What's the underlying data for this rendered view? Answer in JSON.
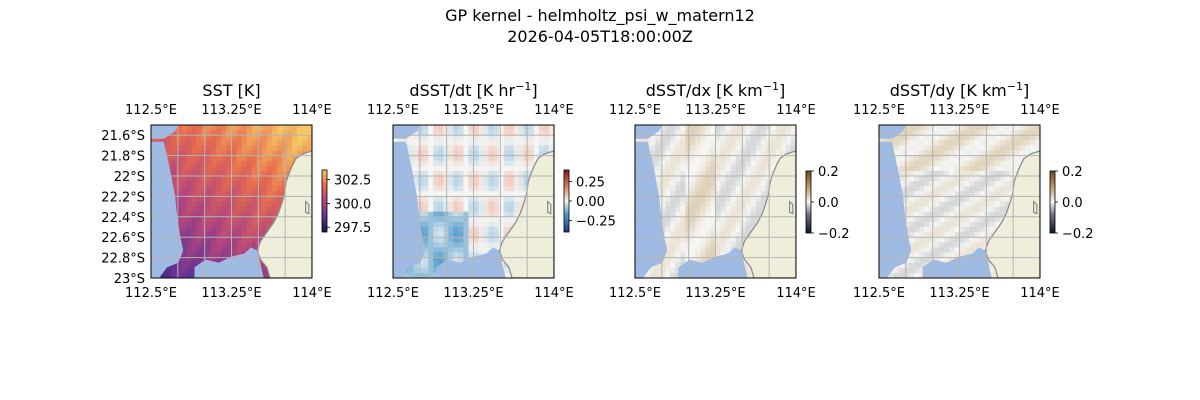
{
  "figure": {
    "title": "GP kernel - helmholtz_psi_w_matern12",
    "timestamp": "2026-04-05T18:00:00Z"
  },
  "colors": {
    "land": "#efeedb",
    "ocean_mask": "#9fbae3",
    "coast": "#8a8a8a",
    "grid": "#b4b4b4"
  },
  "chart_data": [
    {
      "type": "heatmap",
      "title": "SST [K]",
      "colormap": "thermal (purple-red-orange)",
      "x_tick_labels": [
        "112.5°E",
        "113.25°E",
        "114°E"
      ],
      "x_ticks": [
        112.5,
        113.25,
        114.0
      ],
      "y_tick_labels": [
        "21.6°S",
        "21.8°S",
        "22°S",
        "22.2°S",
        "22.4°S",
        "22.6°S",
        "22.8°S",
        "23°S"
      ],
      "y_ticks": [
        -21.6,
        -21.8,
        -22.0,
        -22.2,
        -22.4,
        -22.6,
        -22.8,
        -23.0
      ],
      "xlim": [
        112.5,
        114.0
      ],
      "ylim": [
        -23.0,
        -21.5
      ],
      "colorbar": {
        "ticks": [
          302.5,
          300.0,
          297.5
        ],
        "labels": [
          "302.5",
          "300.0",
          "297.5"
        ],
        "range": [
          297.0,
          303.5
        ]
      },
      "value_range_shown": [
        298.5,
        303.0
      ],
      "grid": true
    },
    {
      "type": "heatmap",
      "title": "dSST/dt [K hr⁻¹]",
      "title_base": "dSST/dt [K hr",
      "title_sup": "−1",
      "title_end": "]",
      "colormap": "diverging (blue-white-red)",
      "x_tick_labels": [
        "112.5°E",
        "113.25°E",
        "114°E"
      ],
      "x_ticks": [
        112.5,
        113.25,
        114.0
      ],
      "xlim": [
        112.5,
        114.0
      ],
      "ylim": [
        -23.0,
        -21.5
      ],
      "colorbar": {
        "ticks": [
          0.25,
          0.0,
          -0.25
        ],
        "labels": [
          "0.25",
          "0.00",
          "−0.25"
        ],
        "range": [
          -0.4,
          0.4
        ]
      },
      "grid": true
    },
    {
      "type": "heatmap",
      "title": "dSST/dx [K km⁻¹]",
      "title_base": "dSST/dx [K km",
      "title_sup": "−1",
      "title_end": "]",
      "colormap": "diverging (dark-white-brown)",
      "x_tick_labels": [
        "112.5°E",
        "113.25°E",
        "114°E"
      ],
      "x_ticks": [
        112.5,
        113.25,
        114.0
      ],
      "xlim": [
        112.5,
        114.0
      ],
      "ylim": [
        -23.0,
        -21.5
      ],
      "colorbar": {
        "ticks": [
          0.2,
          0.0,
          -0.2
        ],
        "labels": [
          "0.2",
          "0.0",
          "−0.2"
        ],
        "range": [
          -0.2,
          0.2
        ]
      },
      "grid": true
    },
    {
      "type": "heatmap",
      "title": "dSST/dy [K km⁻¹]",
      "title_base": "dSST/dy [K km",
      "title_sup": "−1",
      "title_end": "]",
      "colormap": "diverging (dark-white-brown)",
      "x_tick_labels": [
        "112.5°E",
        "113.25°E",
        "114°E"
      ],
      "x_ticks": [
        112.5,
        113.25,
        114.0
      ],
      "xlim": [
        112.5,
        114.0
      ],
      "ylim": [
        -23.0,
        -21.5
      ],
      "colorbar": {
        "ticks": [
          0.2,
          0.0,
          -0.2
        ],
        "labels": [
          "0.2",
          "0.0",
          "−0.2"
        ],
        "range": [
          -0.2,
          0.2
        ]
      },
      "grid": true
    }
  ]
}
